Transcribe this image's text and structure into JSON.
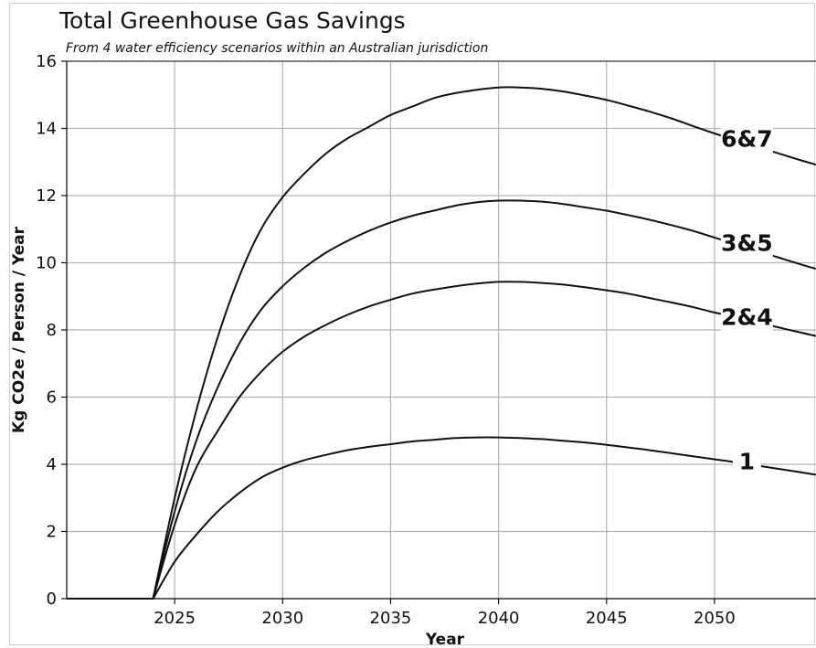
{
  "chart_data": {
    "type": "line",
    "title": "Total Greenhouse Gas Savings",
    "subtitle": "From 4 water efficiency scenarios within an Australian jurisdiction",
    "xlabel": "Year",
    "ylabel": "Kg CO2e / Person / Year",
    "xlim": [
      2020,
      2054.7
    ],
    "ylim": [
      0,
      16
    ],
    "xticks": [
      2025,
      2030,
      2035,
      2040,
      2045,
      2050
    ],
    "yticks": [
      0,
      2,
      4,
      6,
      8,
      10,
      12,
      14,
      16
    ],
    "grid": true,
    "legend": "inline",
    "line_color": "#111111",
    "grid_color": "#b3b3b3",
    "x": [
      2020,
      2024,
      2025,
      2026,
      2027,
      2028,
      2029,
      2030,
      2031,
      2032,
      2033,
      2034,
      2035,
      2036,
      2037,
      2038,
      2039,
      2040,
      2041,
      2042,
      2043,
      2044,
      2045,
      2046,
      2047,
      2048,
      2049,
      2050,
      2051,
      2052,
      2053,
      2054,
      2054.7
    ],
    "series": [
      {
        "name": "6&7",
        "values": [
          0,
          0,
          3.0,
          5.6,
          7.8,
          9.6,
          11.0,
          11.95,
          12.65,
          13.25,
          13.7,
          14.05,
          14.4,
          14.65,
          14.9,
          15.05,
          15.15,
          15.22,
          15.22,
          15.18,
          15.1,
          14.98,
          14.85,
          14.68,
          14.5,
          14.3,
          14.07,
          13.85,
          13.65,
          13.45,
          13.25,
          13.05,
          12.92
        ],
        "label_x": 2051.5,
        "label_y": 13.7
      },
      {
        "name": "3&5",
        "values": [
          0,
          0,
          2.6,
          4.7,
          6.3,
          7.6,
          8.6,
          9.3,
          9.85,
          10.3,
          10.65,
          10.95,
          11.2,
          11.4,
          11.55,
          11.7,
          11.8,
          11.85,
          11.85,
          11.82,
          11.75,
          11.65,
          11.55,
          11.42,
          11.28,
          11.12,
          10.95,
          10.75,
          10.55,
          10.35,
          10.15,
          9.95,
          9.82
        ],
        "label_x": 2051.5,
        "label_y": 10.6
      },
      {
        "name": "2&4",
        "values": [
          0,
          0,
          2.2,
          3.9,
          5.0,
          6.0,
          6.75,
          7.35,
          7.8,
          8.15,
          8.45,
          8.7,
          8.9,
          9.08,
          9.2,
          9.3,
          9.38,
          9.43,
          9.43,
          9.4,
          9.35,
          9.27,
          9.18,
          9.08,
          8.95,
          8.82,
          8.68,
          8.52,
          8.38,
          8.22,
          8.07,
          7.92,
          7.82
        ],
        "label_x": 2051.5,
        "label_y": 8.4
      },
      {
        "name": "1",
        "values": [
          0,
          0,
          1.1,
          1.9,
          2.6,
          3.15,
          3.6,
          3.9,
          4.12,
          4.28,
          4.42,
          4.52,
          4.6,
          4.68,
          4.73,
          4.78,
          4.8,
          4.8,
          4.78,
          4.75,
          4.7,
          4.65,
          4.58,
          4.5,
          4.42,
          4.33,
          4.24,
          4.15,
          4.06,
          3.96,
          3.86,
          3.76,
          3.69
        ],
        "label_x": 2051.5,
        "label_y": 4.1
      }
    ]
  }
}
